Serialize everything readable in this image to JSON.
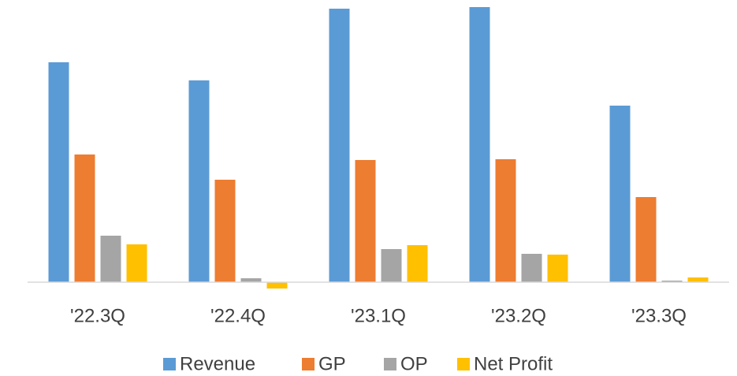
{
  "chart_data": {
    "type": "bar",
    "categories": [
      "'22.3Q",
      "'22.4Q",
      "'23.1Q",
      "'23.2Q",
      "'23.3Q"
    ],
    "series": [
      {
        "name": "Revenue",
        "color": "#5b9bd5",
        "values": [
          279,
          256,
          347,
          349,
          224
        ]
      },
      {
        "name": "GP",
        "color": "#ed7d31",
        "values": [
          162,
          130,
          155,
          156,
          108
        ]
      },
      {
        "name": "OP",
        "color": "#a5a5a5",
        "values": [
          59,
          5,
          42,
          36,
          2
        ]
      },
      {
        "name": "Net Profit",
        "color": "#ffc000",
        "values": [
          48,
          -8,
          47,
          35,
          6
        ]
      }
    ]
  }
}
